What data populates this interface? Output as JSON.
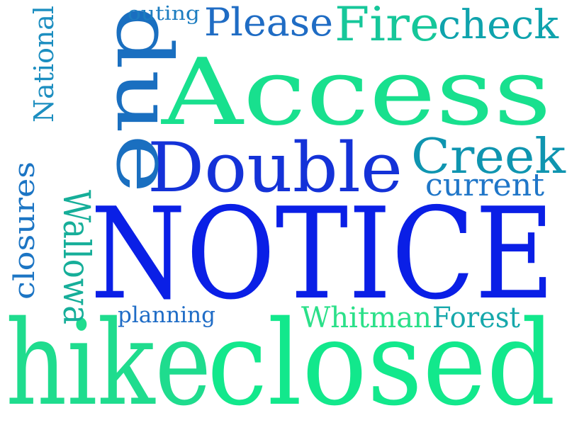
{
  "word_cloud": {
    "words": [
      {
        "text": "NOTICE",
        "color": "#0a1fe6",
        "orientation": "horizontal"
      },
      {
        "text": "hike",
        "color": "#1fdc8e",
        "orientation": "horizontal"
      },
      {
        "text": "closed",
        "color": "#12e88c",
        "orientation": "horizontal"
      },
      {
        "text": "Access",
        "color": "#18e08e",
        "orientation": "horizontal"
      },
      {
        "text": "Double",
        "color": "#1432d8",
        "orientation": "horizontal"
      },
      {
        "text": "due",
        "color": "#1a6fc0",
        "orientation": "vertical"
      },
      {
        "text": "Creek",
        "color": "#0f95b0",
        "orientation": "horizontal"
      },
      {
        "text": "Fire",
        "color": "#16c79a",
        "orientation": "horizontal"
      },
      {
        "text": "check",
        "color": "#0fa3ad",
        "orientation": "horizontal"
      },
      {
        "text": "Please",
        "color": "#1f6cc4",
        "orientation": "horizontal"
      },
      {
        "text": "current",
        "color": "#1f76c8",
        "orientation": "horizontal"
      },
      {
        "text": "Whitman",
        "color": "#2be089",
        "orientation": "horizontal"
      },
      {
        "text": "Forest",
        "color": "#16a8ab",
        "orientation": "horizontal"
      },
      {
        "text": "Wallowa",
        "color": "#16ae99",
        "orientation": "vertical"
      },
      {
        "text": "closures",
        "color": "#1c75c4",
        "orientation": "vertical"
      },
      {
        "text": "National",
        "color": "#1c8ec0",
        "orientation": "vertical"
      },
      {
        "text": "planning",
        "color": "#1f6cc6",
        "orientation": "horizontal"
      },
      {
        "text": "outing",
        "color": "#1d7dc0",
        "orientation": "horizontal"
      }
    ]
  }
}
